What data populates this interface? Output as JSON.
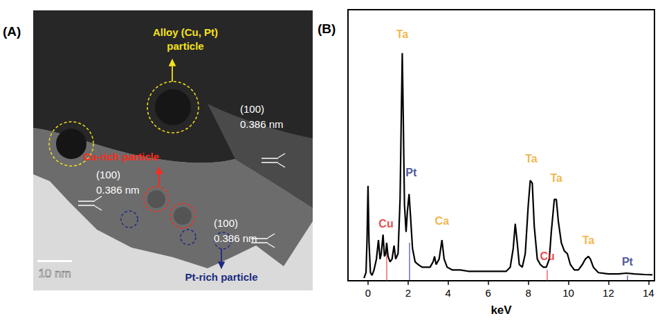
{
  "panel_a": {
    "label": "(A)",
    "scale_bar": "10 nm",
    "annotations": [
      {
        "lines": [
          "Alloy (Cu, Pt)",
          "particle"
        ],
        "color": "#f5e21b"
      },
      {
        "lines": [
          "Cu-rich particle"
        ],
        "color": "#ff2a1a"
      },
      {
        "lines": [
          "Pt-rich particle"
        ],
        "color": "#1c2a80"
      }
    ],
    "lattice_labels": [
      {
        "lines": [
          "(100)",
          "0.386 nm"
        ]
      },
      {
        "lines": [
          "(100)",
          "0.386 nm"
        ]
      },
      {
        "lines": [
          "(100)",
          "0.386 nm"
        ]
      }
    ]
  },
  "chart_data": {
    "type": "line",
    "panel": "(B)",
    "x_label": "keV",
    "color": "#000000",
    "xlim": [
      -1,
      14.3
    ],
    "xticks": [
      0,
      2,
      4,
      6,
      8,
      10,
      12,
      14
    ],
    "ylim": [
      0,
      100
    ],
    "yticks": [],
    "tick_labels": "x",
    "grid": false,
    "x": [
      -0.2,
      -0.1,
      -0.05,
      0,
      0.05,
      0.12,
      0.2,
      0.3,
      0.42,
      0.52,
      0.6,
      0.66,
      0.75,
      0.82,
      0.88,
      0.93,
      1.0,
      1.1,
      1.2,
      1.3,
      1.38,
      1.5,
      1.6,
      1.66,
      1.71,
      1.76,
      1.82,
      1.9,
      1.97,
      2.05,
      2.12,
      2.22,
      2.35,
      2.5,
      2.7,
      2.9,
      3.1,
      3.25,
      3.32,
      3.4,
      3.55,
      3.69,
      3.8,
      3.95,
      4.2,
      4.6,
      5.0,
      5.5,
      6.0,
      6.5,
      6.9,
      7.1,
      7.25,
      7.35,
      7.45,
      7.55,
      7.7,
      7.85,
      8.0,
      8.1,
      8.2,
      8.3,
      8.45,
      8.6,
      8.75,
      8.9,
      9.05,
      9.15,
      9.3,
      9.4,
      9.5,
      9.65,
      9.8,
      9.95,
      10.1,
      10.3,
      10.5,
      10.7,
      10.85,
      11.0,
      11.1,
      11.25,
      11.5,
      12.0,
      12.5,
      12.9,
      13.3,
      13.8,
      14.2
    ],
    "values": [
      1,
      3,
      15,
      35,
      14,
      3,
      2,
      4,
      8,
      15,
      8,
      10,
      17,
      9,
      10,
      14,
      9,
      7,
      8,
      13,
      8,
      10,
      30,
      60,
      84,
      60,
      28,
      18,
      26,
      32,
      24,
      12,
      7,
      6,
      5,
      5,
      5,
      7,
      9,
      6,
      8,
      15,
      8,
      5,
      4,
      4,
      3.5,
      3.5,
      3.5,
      3.5,
      3.5,
      5,
      12,
      21,
      14,
      6,
      5,
      10,
      28,
      37,
      36,
      20,
      8,
      6,
      5,
      5,
      8,
      18,
      30,
      30,
      22,
      14,
      11,
      10,
      6,
      4,
      4,
      6,
      8,
      9,
      8,
      5,
      3,
      2.5,
      2.5,
      2.8,
      2.5,
      2.3,
      2.2
    ],
    "annotations": [
      {
        "text": "Ta",
        "x": 1.71,
        "y": 91,
        "color": "#f0a31c"
      },
      {
        "text": "Pt",
        "x": 2.15,
        "y": 40,
        "color": "#1c2a80"
      },
      {
        "text": "Cu",
        "x": 0.9,
        "y": 21,
        "color": "#e0201b"
      },
      {
        "text": "Ca",
        "x": 3.69,
        "y": 22,
        "color": "#f0a31c"
      },
      {
        "text": "Ta",
        "x": 8.15,
        "y": 45,
        "color": "#f0a31c"
      },
      {
        "text": "Ta",
        "x": 9.4,
        "y": 38,
        "color": "#f0a31c"
      },
      {
        "text": "Cu",
        "x": 8.95,
        "y": 9,
        "color": "#e0201b"
      },
      {
        "text": "Ta",
        "x": 11.0,
        "y": 15,
        "color": "#f0a31c"
      },
      {
        "text": "Pt",
        "x": 12.95,
        "y": 7,
        "color": "#1c2a80"
      }
    ],
    "element_lines": [
      {
        "energy": 0.93,
        "height": 12,
        "color": "#e0201b"
      },
      {
        "energy": 2.05,
        "height": 14,
        "color": "#1c2a80"
      },
      {
        "energy": 8.95,
        "height": 4,
        "color": "#e0201b"
      },
      {
        "energy": 12.95,
        "height": 2,
        "color": "#1c2a80"
      }
    ]
  }
}
